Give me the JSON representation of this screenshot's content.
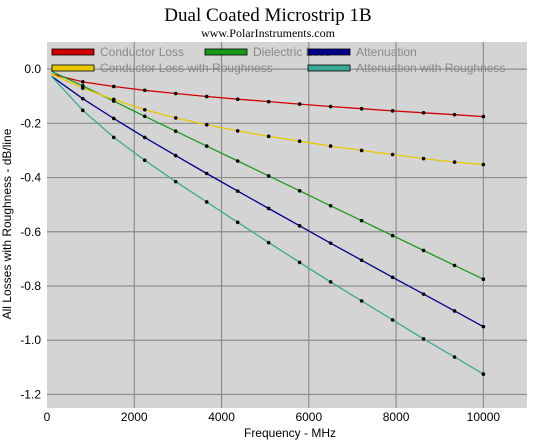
{
  "chart_data": {
    "type": "line",
    "title": "Dual Coated Microstrip 1B",
    "subtitle": "www.PolarInstruments.com",
    "xlabel": "Frequency - MHz",
    "ylabel": "All Losses with Roughness - dB/line",
    "xlim": [
      0,
      11000
    ],
    "ylim": [
      -1.25,
      0.1
    ],
    "x_ticks": [
      0,
      2000,
      4000,
      6000,
      8000,
      10000
    ],
    "y_ticks": [
      0.0,
      -0.2,
      -0.4,
      -0.6,
      -0.8,
      -1.0,
      -1.2
    ],
    "x_tick_labels": [
      "0",
      "2000",
      "4000",
      "6000",
      "8000",
      "10000"
    ],
    "y_tick_labels": [
      "0.0",
      "-0.2",
      "-0.4",
      "-0.6",
      "-0.8",
      "-1.0",
      "-1.2"
    ],
    "grid": true,
    "legend_position": "top",
    "x": [
      100,
      820,
      1530,
      2240,
      2950,
      3660,
      4370,
      5080,
      5790,
      6500,
      7210,
      7920,
      8630,
      9340,
      10000
    ],
    "series": [
      {
        "name": "Conductor Loss",
        "color": "#d00000",
        "values": [
          -0.018,
          -0.047,
          -0.064,
          -0.078,
          -0.09,
          -0.101,
          -0.111,
          -0.12,
          -0.129,
          -0.138,
          -0.146,
          -0.154,
          -0.161,
          -0.168,
          -0.175
        ]
      },
      {
        "name": "Dielectric Loss",
        "color": "#1a9a1a",
        "values": [
          -0.008,
          -0.062,
          -0.118,
          -0.174,
          -0.229,
          -0.284,
          -0.339,
          -0.394,
          -0.449,
          -0.504,
          -0.559,
          -0.614,
          -0.669,
          -0.724,
          -0.775
        ]
      },
      {
        "name": "Attenuation",
        "color": "#00008b",
        "values": [
          -0.026,
          -0.109,
          -0.182,
          -0.252,
          -0.319,
          -0.385,
          -0.45,
          -0.514,
          -0.578,
          -0.642,
          -0.705,
          -0.768,
          -0.83,
          -0.892,
          -0.95
        ]
      },
      {
        "name": "Conductor Loss with Roughness",
        "color": "#e8c800",
        "values": [
          -0.018,
          -0.07,
          -0.112,
          -0.15,
          -0.18,
          -0.205,
          -0.228,
          -0.248,
          -0.266,
          -0.284,
          -0.3,
          -0.315,
          -0.33,
          -0.343,
          -0.352
        ]
      },
      {
        "name": "Attenuation with Roughness",
        "color": "#3aa894",
        "values": [
          -0.026,
          -0.152,
          -0.252,
          -0.336,
          -0.415,
          -0.49,
          -0.565,
          -0.64,
          -0.713,
          -0.785,
          -0.855,
          -0.925,
          -0.995,
          -1.062,
          -1.125
        ]
      }
    ]
  }
}
